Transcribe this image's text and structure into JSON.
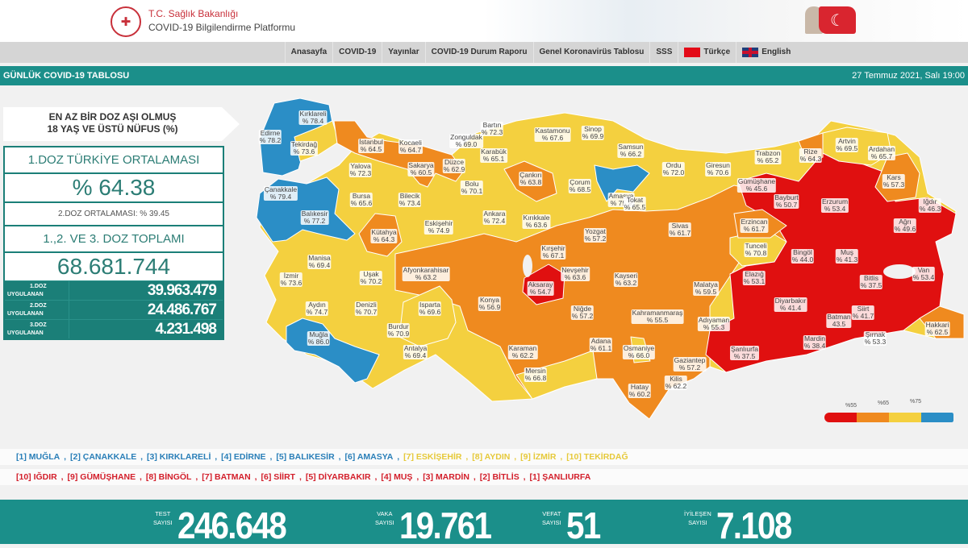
{
  "header": {
    "ministry": "T.C. Sağlık Bakanlığı",
    "platform": "COVID-19 Bilgilendirme Platformu",
    "logo_icon": "ministry-emblem-icon",
    "flag_icon": "turkish-flag-icon"
  },
  "nav": {
    "items": [
      "Anasayfa",
      "COVID-19",
      "Yayınlar",
      "COVID-19 Durum Raporu",
      "Genel Koronavirüs Tablosu",
      "SSS",
      "Türkçe",
      "English"
    ]
  },
  "bar": {
    "title": "GÜNLÜK COVID-19 TABLOSU",
    "date": "27 Temmuz 2021, Salı 19:00"
  },
  "panel": {
    "title_line1": "EN AZ BİR DOZ AŞI OLMUŞ",
    "title_line2": "18 YAŞ VE ÜSTÜ NÜFUS (%)",
    "avg_label": "1.DOZ TÜRKİYE ORTALAMASI",
    "avg_value": "% 64.38",
    "dose2_avg": "2.DOZ ORTALAMASI: % 39.45",
    "total_label": "1.,2. VE 3. DOZ TOPLAMI",
    "total_value": "68.681.744",
    "doses": [
      {
        "label1": "1.DOZ",
        "label2": "UYGULANAN",
        "value": "39.963.479"
      },
      {
        "label1": "2.DOZ",
        "label2": "UYGULANAN",
        "value": "24.486.767"
      },
      {
        "label1": "3.DOZ",
        "label2": "UYGULANAN",
        "value": "4.231.498"
      }
    ]
  },
  "map": {
    "colors": {
      "below55": "#e01010",
      "55to65": "#ef8a1f",
      "65to75": "#f4d03f",
      "above75": "#2b8ec6"
    },
    "legend": [
      "%55",
      "%65",
      "%75"
    ],
    "provinces": [
      {
        "name": "Edirne",
        "value": "% 78.2"
      },
      {
        "name": "Kırklareli",
        "value": "% 78.4"
      },
      {
        "name": "Tekirdağ",
        "value": "% 73.6"
      },
      {
        "name": "İstanbul",
        "value": "% 64.5"
      },
      {
        "name": "Kocaeli",
        "value": "% 64.7"
      },
      {
        "name": "Yalova",
        "value": "% 72.3"
      },
      {
        "name": "Sakarya",
        "value": "% 60.5"
      },
      {
        "name": "Düzce",
        "value": "% 62.9"
      },
      {
        "name": "Zonguldak",
        "value": "% 69.0"
      },
      {
        "name": "Bartın",
        "value": "% 72.3"
      },
      {
        "name": "Karabük",
        "value": "% 65.1"
      },
      {
        "name": "Kastamonu",
        "value": "% 67.6"
      },
      {
        "name": "Sinop",
        "value": "% 69.9"
      },
      {
        "name": "Samsun",
        "value": "% 66.2"
      },
      {
        "name": "Çanakkale",
        "value": "% 79.4"
      },
      {
        "name": "Balıkesir",
        "value": "% 77.2"
      },
      {
        "name": "Bursa",
        "value": "% 65.6"
      },
      {
        "name": "Bilecik",
        "value": "% 73.4"
      },
      {
        "name": "Bolu",
        "value": "% 70.1"
      },
      {
        "name": "Çankırı",
        "value": "% 63.8"
      },
      {
        "name": "Çorum",
        "value": "% 68.5"
      },
      {
        "name": "Amasya",
        "value": "% 75.9"
      },
      {
        "name": "Tokat",
        "value": "% 65.5"
      },
      {
        "name": "Ordu",
        "value": "% 72.0"
      },
      {
        "name": "Giresun",
        "value": "% 70.6"
      },
      {
        "name": "Trabzon",
        "value": "% 65.2"
      },
      {
        "name": "Rize",
        "value": "% 64.3"
      },
      {
        "name": "Artvin",
        "value": "% 69.5"
      },
      {
        "name": "Ardahan",
        "value": "% 65.7"
      },
      {
        "name": "Gümüşhane",
        "value": "% 45.6"
      },
      {
        "name": "Bayburt",
        "value": "% 50.7"
      },
      {
        "name": "Erzurum",
        "value": "% 53.4"
      },
      {
        "name": "Kars",
        "value": "% 57.3"
      },
      {
        "name": "Iğdır",
        "value": "% 46.3"
      },
      {
        "name": "Ağrı",
        "value": "% 49.6"
      },
      {
        "name": "Erzincan",
        "value": "% 61.7"
      },
      {
        "name": "Sivas",
        "value": "% 61.7"
      },
      {
        "name": "Tunceli",
        "value": "% 70.8"
      },
      {
        "name": "Bingöl",
        "value": "% 44.0"
      },
      {
        "name": "Muş",
        "value": "% 41.3"
      },
      {
        "name": "Van",
        "value": "% 53.4"
      },
      {
        "name": "Bitlis",
        "value": "% 37.5"
      },
      {
        "name": "Elazığ",
        "value": "% 53.1"
      },
      {
        "name": "Malatya",
        "value": "% 59.5"
      },
      {
        "name": "Diyarbakır",
        "value": "% 41.4"
      },
      {
        "name": "Siirt",
        "value": "% 41.7"
      },
      {
        "name": "Batman",
        "value": "43.5"
      },
      {
        "name": "Hakkari",
        "value": "% 62.5"
      },
      {
        "name": "Şırnak",
        "value": "% 53.3"
      },
      {
        "name": "Mardin",
        "value": "% 38.4"
      },
      {
        "name": "Şanlıurfa",
        "value": "% 37.5"
      },
      {
        "name": "Adıyaman",
        "value": "% 55.3"
      },
      {
        "name": "Kahramanmaraş",
        "value": "% 55.5"
      },
      {
        "name": "Gaziantep",
        "value": "% 57.2"
      },
      {
        "name": "Kilis",
        "value": "% 62.2"
      },
      {
        "name": "Hatay",
        "value": "% 60.2"
      },
      {
        "name": "Osmaniye",
        "value": "% 66.0"
      },
      {
        "name": "Adana",
        "value": "% 61.1"
      },
      {
        "name": "Kayseri",
        "value": "% 63.2"
      },
      {
        "name": "Niğde",
        "value": "% 57.2"
      },
      {
        "name": "Nevşehir",
        "value": "% 63.6"
      },
      {
        "name": "Aksaray",
        "value": "% 54.7"
      },
      {
        "name": "Kırşehir",
        "value": "% 67.1"
      },
      {
        "name": "Kırıkkale",
        "value": "% 63.6"
      },
      {
        "name": "Yozgat",
        "value": "% 57.2"
      },
      {
        "name": "Ankara",
        "value": "% 72.4"
      },
      {
        "name": "Eskişehir",
        "value": "% 74.9"
      },
      {
        "name": "Kütahya",
        "value": "% 64.3"
      },
      {
        "name": "Manisa",
        "value": "% 69.4"
      },
      {
        "name": "İzmir",
        "value": "% 73.6"
      },
      {
        "name": "Uşak",
        "value": "% 70.2"
      },
      {
        "name": "Afyonkarahisar",
        "value": "% 63.2"
      },
      {
        "name": "Aydın",
        "value": "% 74.7"
      },
      {
        "name": "Denizli",
        "value": "% 70.7"
      },
      {
        "name": "Isparta",
        "value": "% 69.6"
      },
      {
        "name": "Konya",
        "value": "% 56.9"
      },
      {
        "name": "Muğla",
        "value": "% 86.0"
      },
      {
        "name": "Burdur",
        "value": "% 70.9"
      },
      {
        "name": "Antalya",
        "value": "% 69.4"
      },
      {
        "name": "Karaman",
        "value": "% 62.2"
      },
      {
        "name": "Mersin",
        "value": "% 66.8"
      }
    ]
  },
  "rankings": {
    "top": [
      {
        "text": "[1] MUĞLA",
        "tier": "blue"
      },
      {
        "text": "[2] ÇANAKKALE",
        "tier": "blue"
      },
      {
        "text": "[3] KIRKLARELİ",
        "tier": "blue"
      },
      {
        "text": "[4] EDİRNE",
        "tier": "blue"
      },
      {
        "text": "[5] BALIKESİR",
        "tier": "blue"
      },
      {
        "text": "[6] AMASYA",
        "tier": "blue"
      },
      {
        "text": "[7] ESKİŞEHİR",
        "tier": "yellow"
      },
      {
        "text": "[8] AYDIN",
        "tier": "yellow"
      },
      {
        "text": "[9] İZMİR",
        "tier": "yellow"
      },
      {
        "text": "[10] TEKİRDAĞ",
        "tier": "yellow"
      }
    ],
    "bottom": [
      {
        "text": "[10] IĞDIR",
        "tier": "red"
      },
      {
        "text": "[9] GÜMÜŞHANE",
        "tier": "red"
      },
      {
        "text": "[8] BİNGÖL",
        "tier": "red"
      },
      {
        "text": "[7] BATMAN",
        "tier": "red"
      },
      {
        "text": "[6] SİİRT",
        "tier": "red"
      },
      {
        "text": "[5] DİYARBAKIR",
        "tier": "red"
      },
      {
        "text": "[4] MUŞ",
        "tier": "red"
      },
      {
        "text": "[3] MARDİN",
        "tier": "red"
      },
      {
        "text": "[2] BİTLİS",
        "tier": "red"
      },
      {
        "text": "[1] ŞANLIURFA",
        "tier": "red"
      }
    ],
    "tier_colors": {
      "blue": "#2a7fb8",
      "yellow": "#e6c93a",
      "red": "#d3202c"
    }
  },
  "footer": {
    "test": {
      "label1": "TEST",
      "label2": "SAYISI",
      "value": "246.648"
    },
    "case": {
      "label1": "VAKA",
      "label2": "SAYISI",
      "value": "19.761"
    },
    "death": {
      "label1": "VEFAT",
      "label2": "SAYISI",
      "value": "51"
    },
    "recovered": {
      "label1": "İYİLEŞEN",
      "label2": "SAYISI",
      "value": "7.108"
    }
  }
}
